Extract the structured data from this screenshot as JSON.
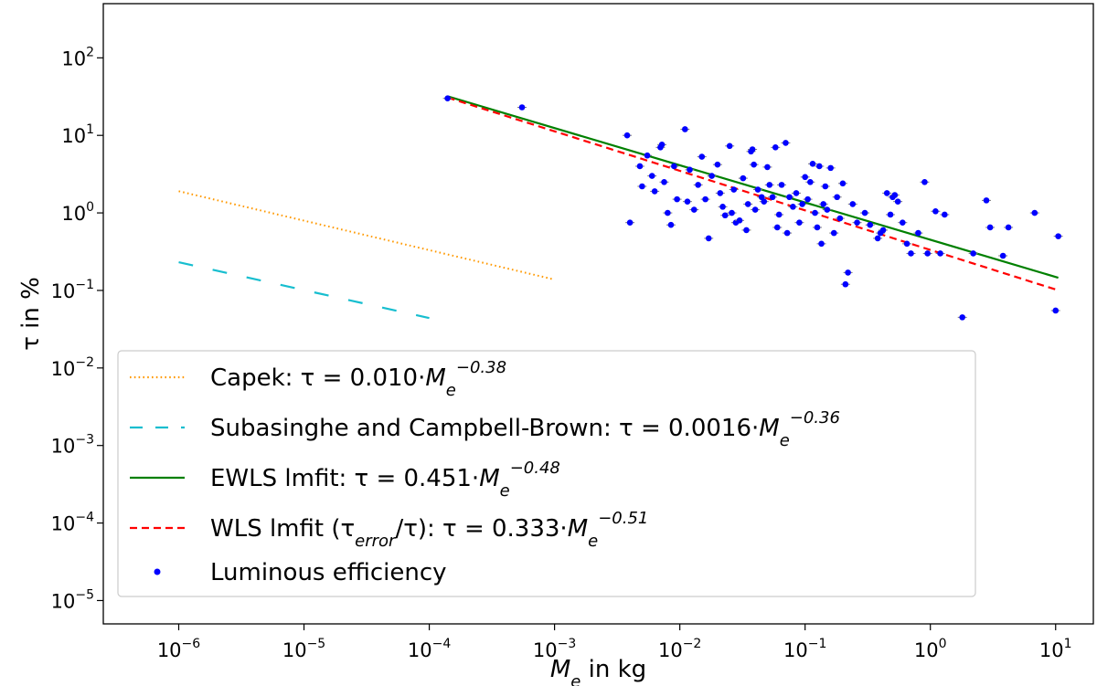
{
  "chart_data": {
    "type": "scatter",
    "xscale": "log",
    "yscale": "log",
    "xlim": [
      2.5e-07,
      20
    ],
    "ylim": [
      5e-06,
      500
    ],
    "xlabel": {
      "main": "M",
      "sub": "e",
      "rest": " in kg"
    },
    "ylabel": "τ in %",
    "xticks": [
      {
        "value": 1e-06,
        "base": "10",
        "exp": "−6"
      },
      {
        "value": 1e-05,
        "base": "10",
        "exp": "−5"
      },
      {
        "value": 0.0001,
        "base": "10",
        "exp": "−4"
      },
      {
        "value": 0.001,
        "base": "10",
        "exp": "−3"
      },
      {
        "value": 0.01,
        "base": "10",
        "exp": "−2"
      },
      {
        "value": 0.1,
        "base": "10",
        "exp": "−1"
      },
      {
        "value": 1,
        "base": "10",
        "exp": "0"
      },
      {
        "value": 10,
        "base": "10",
        "exp": "1"
      }
    ],
    "yticks": [
      {
        "value": 1e-05,
        "base": "10",
        "exp": "−5"
      },
      {
        "value": 0.0001,
        "base": "10",
        "exp": "−4"
      },
      {
        "value": 0.001,
        "base": "10",
        "exp": "−3"
      },
      {
        "value": 0.01,
        "base": "10",
        "exp": "−2"
      },
      {
        "value": 0.1,
        "base": "10",
        "exp": "−1"
      },
      {
        "value": 1,
        "base": "10",
        "exp": "0"
      },
      {
        "value": 10,
        "base": "10",
        "exp": "1"
      },
      {
        "value": 100,
        "base": "10",
        "exp": "2"
      }
    ],
    "lines": [
      {
        "name": "Capek",
        "coef": 0.01,
        "exp": -0.38,
        "xrange": [
          1e-06,
          0.001
        ],
        "color": "#ff9900",
        "style": "dotted",
        "legend": {
          "prefix": "Capek: τ = 0.010·",
          "sub": "e",
          "sup": "−0.38"
        }
      },
      {
        "name": "Subasinghe and Campbell-Brown",
        "coef": 0.0016,
        "exp": -0.36,
        "xrange": [
          1e-06,
          0.0001
        ],
        "color": "#17becf",
        "style": "dashed",
        "legend": {
          "prefix": "Subasinghe and Campbell-Brown: τ = 0.0016·",
          "sub": "e",
          "sup": "−0.36"
        }
      },
      {
        "name": "EWLS lmfit",
        "coef": 0.451,
        "exp": -0.48,
        "xrange": [
          0.00014,
          10.5
        ],
        "color": "#008000",
        "style": "solid",
        "legend": {
          "prefix": "EWLS lmfit: τ = 0.451·",
          "sub": "e",
          "sup": "−0.48"
        }
      },
      {
        "name": "WLS lmfit",
        "coef": 0.333,
        "exp": -0.51,
        "xrange": [
          0.00014,
          10.5
        ],
        "color": "#ff0000",
        "style": "dashed",
        "legend": {
          "prefix": "WLS lmfit (τ",
          "errsub": "error",
          "mid": "/τ): τ = 0.333·",
          "sub": "e",
          "sup": "−0.51"
        }
      }
    ],
    "scatter": {
      "name": "Luminous efficiency",
      "color": "#0000ff",
      "points": [
        [
          0.00014,
          30
        ],
        [
          0.00055,
          23
        ],
        [
          0.0038,
          10
        ],
        [
          0.004,
          0.75
        ],
        [
          0.0048,
          4.0
        ],
        [
          0.005,
          2.2
        ],
        [
          0.0055,
          5.5
        ],
        [
          0.006,
          3.0
        ],
        [
          0.0063,
          1.9
        ],
        [
          0.007,
          7.0
        ],
        [
          0.0072,
          7.6
        ],
        [
          0.0075,
          2.5
        ],
        [
          0.008,
          1.0
        ],
        [
          0.0085,
          0.7
        ],
        [
          0.009,
          4.0
        ],
        [
          0.0095,
          1.5
        ],
        [
          0.011,
          12.0
        ],
        [
          0.0115,
          1.4
        ],
        [
          0.012,
          3.6
        ],
        [
          0.013,
          1.1
        ],
        [
          0.014,
          2.3
        ],
        [
          0.015,
          5.3
        ],
        [
          0.016,
          1.5
        ],
        [
          0.017,
          0.47
        ],
        [
          0.018,
          3.0
        ],
        [
          0.02,
          4.2
        ],
        [
          0.021,
          1.8
        ],
        [
          0.022,
          1.2
        ],
        [
          0.023,
          0.93
        ],
        [
          0.025,
          7.3
        ],
        [
          0.026,
          1.0
        ],
        [
          0.027,
          2.0
        ],
        [
          0.028,
          0.75
        ],
        [
          0.03,
          0.8
        ],
        [
          0.032,
          2.8
        ],
        [
          0.034,
          0.6
        ],
        [
          0.035,
          1.3
        ],
        [
          0.037,
          6.2
        ],
        [
          0.038,
          6.6
        ],
        [
          0.039,
          4.2
        ],
        [
          0.04,
          1.1
        ],
        [
          0.042,
          2.0
        ],
        [
          0.045,
          1.6
        ],
        [
          0.047,
          1.4
        ],
        [
          0.05,
          3.9
        ],
        [
          0.052,
          2.3
        ],
        [
          0.055,
          1.6
        ],
        [
          0.058,
          7.0
        ],
        [
          0.06,
          0.65
        ],
        [
          0.062,
          0.95
        ],
        [
          0.065,
          2.3
        ],
        [
          0.07,
          8.0
        ],
        [
          0.072,
          0.55
        ],
        [
          0.075,
          1.6
        ],
        [
          0.08,
          1.2
        ],
        [
          0.085,
          1.8
        ],
        [
          0.09,
          0.75
        ],
        [
          0.095,
          1.3
        ],
        [
          0.1,
          2.9
        ],
        [
          0.105,
          1.5
        ],
        [
          0.11,
          2.5
        ],
        [
          0.115,
          4.3
        ],
        [
          0.12,
          1.0
        ],
        [
          0.125,
          0.65
        ],
        [
          0.13,
          4.0
        ],
        [
          0.135,
          0.4
        ],
        [
          0.14,
          1.3
        ],
        [
          0.145,
          2.2
        ],
        [
          0.15,
          1.1
        ],
        [
          0.16,
          3.8
        ],
        [
          0.17,
          0.55
        ],
        [
          0.18,
          1.6
        ],
        [
          0.19,
          0.85
        ],
        [
          0.2,
          2.4
        ],
        [
          0.21,
          0.12
        ],
        [
          0.22,
          0.17
        ],
        [
          0.24,
          1.3
        ],
        [
          0.26,
          0.75
        ],
        [
          0.3,
          1.0
        ],
        [
          0.33,
          0.7
        ],
        [
          0.38,
          0.47
        ],
        [
          0.4,
          0.55
        ],
        [
          0.42,
          0.6
        ],
        [
          0.45,
          1.8
        ],
        [
          0.48,
          0.95
        ],
        [
          0.5,
          1.6
        ],
        [
          0.52,
          1.7
        ],
        [
          0.55,
          1.4
        ],
        [
          0.6,
          0.75
        ],
        [
          0.65,
          0.4
        ],
        [
          0.7,
          0.3
        ],
        [
          0.8,
          0.55
        ],
        [
          0.9,
          2.5
        ],
        [
          0.95,
          0.3
        ],
        [
          1.1,
          1.05
        ],
        [
          1.2,
          0.3
        ],
        [
          1.3,
          0.95
        ],
        [
          1.8,
          0.045
        ],
        [
          2.2,
          0.3
        ],
        [
          2.8,
          1.45
        ],
        [
          3.0,
          0.65
        ],
        [
          3.8,
          0.28
        ],
        [
          4.2,
          0.65
        ],
        [
          6.8,
          1.0
        ],
        [
          10.0,
          0.055
        ],
        [
          10.5,
          0.5
        ]
      ]
    },
    "legend": {
      "position": "lower-left",
      "item_label": "Luminous efficiency"
    }
  }
}
